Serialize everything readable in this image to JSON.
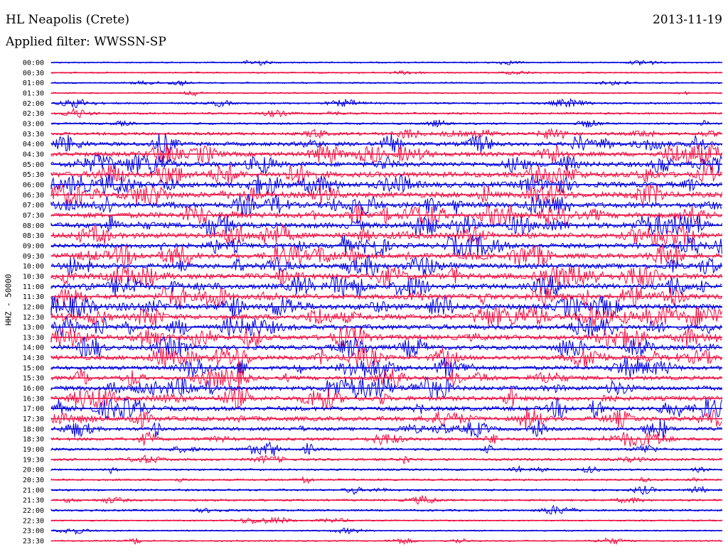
{
  "header": {
    "station": "HL Neapolis (Crete)",
    "date": "2013-11-19",
    "filter": "Applied filter: WWSSN-SP"
  },
  "chart_data": {
    "type": "line",
    "title": "HL Neapolis (Crete)",
    "ylabel": "HHZ - 50000",
    "row_labels": [
      "00:00",
      "00:30",
      "01:00",
      "01:30",
      "02:00",
      "02:30",
      "03:00",
      "03:30",
      "04:00",
      "04:30",
      "05:00",
      "05:30",
      "06:00",
      "06:30",
      "07:00",
      "07:30",
      "08:00",
      "08:30",
      "09:00",
      "09:30",
      "10:00",
      "10:30",
      "11:00",
      "11:30",
      "12:00",
      "12:30",
      "13:00",
      "13:30",
      "14:00",
      "14:30",
      "15:00",
      "15:30",
      "16:00",
      "16:30",
      "17:00",
      "17:30",
      "18:00",
      "18:30",
      "19:00",
      "19:30",
      "20:00",
      "20:30",
      "21:00",
      "21:30",
      "22:00",
      "22:30",
      "23:00",
      "23:30"
    ],
    "activity": [
      1,
      1,
      1,
      1,
      2,
      2,
      2,
      4,
      6,
      7,
      8,
      9,
      9,
      9,
      9,
      9,
      9,
      9,
      8,
      8,
      8,
      9,
      9,
      8,
      9,
      9,
      8,
      8,
      7,
      7,
      6,
      6,
      7,
      7,
      7,
      7,
      5,
      4,
      3,
      3,
      2,
      2,
      2,
      2,
      2,
      1,
      1,
      1
    ],
    "colors": [
      "#0000dd",
      "#ee1144"
    ],
    "grid": false
  }
}
